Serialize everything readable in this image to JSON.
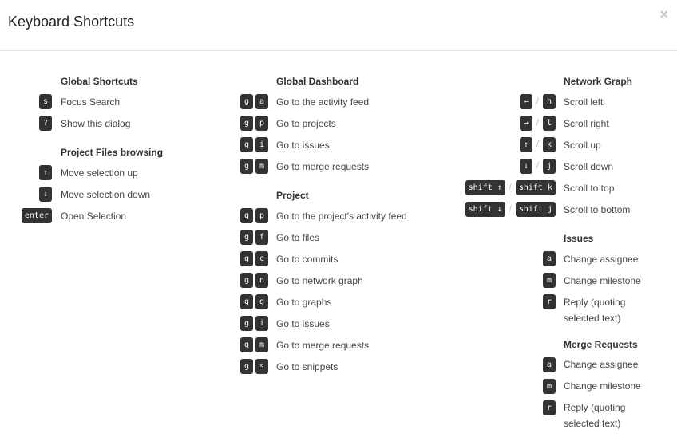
{
  "title": "Keyboard Shortcuts",
  "close": "×",
  "columns": [
    {
      "sections": [
        {
          "title": "Global Shortcuts",
          "items": [
            {
              "keys": [
                [
                  "s"
                ]
              ],
              "desc": "Focus Search"
            },
            {
              "keys": [
                [
                  "?"
                ]
              ],
              "desc": "Show this dialog"
            }
          ]
        },
        {
          "title": "Project Files browsing",
          "items": [
            {
              "keys": [
                [
                  "↑"
                ]
              ],
              "desc": "Move selection up"
            },
            {
              "keys": [
                [
                  "↓"
                ]
              ],
              "desc": "Move selection down"
            },
            {
              "keys": [
                [
                  "enter"
                ]
              ],
              "desc": "Open Selection"
            }
          ]
        }
      ]
    },
    {
      "sections": [
        {
          "title": "Global Dashboard",
          "items": [
            {
              "keys": [
                [
                  "g",
                  "a"
                ]
              ],
              "desc": "Go to the activity feed"
            },
            {
              "keys": [
                [
                  "g",
                  "p"
                ]
              ],
              "desc": "Go to projects"
            },
            {
              "keys": [
                [
                  "g",
                  "i"
                ]
              ],
              "desc": "Go to issues"
            },
            {
              "keys": [
                [
                  "g",
                  "m"
                ]
              ],
              "desc": "Go to merge requests"
            }
          ]
        },
        {
          "title": "Project",
          "items": [
            {
              "keys": [
                [
                  "g",
                  "p"
                ]
              ],
              "desc": "Go to the project's activity feed"
            },
            {
              "keys": [
                [
                  "g",
                  "f"
                ]
              ],
              "desc": "Go to files"
            },
            {
              "keys": [
                [
                  "g",
                  "c"
                ]
              ],
              "desc": "Go to commits"
            },
            {
              "keys": [
                [
                  "g",
                  "n"
                ]
              ],
              "desc": "Go to network graph"
            },
            {
              "keys": [
                [
                  "g",
                  "g"
                ]
              ],
              "desc": "Go to graphs"
            },
            {
              "keys": [
                [
                  "g",
                  "i"
                ]
              ],
              "desc": "Go to issues"
            },
            {
              "keys": [
                [
                  "g",
                  "m"
                ]
              ],
              "desc": "Go to merge requests"
            },
            {
              "keys": [
                [
                  "g",
                  "s"
                ]
              ],
              "desc": "Go to snippets"
            }
          ]
        }
      ]
    },
    {
      "sections": [
        {
          "title": "Network Graph",
          "items": [
            {
              "keys": [
                [
                  "←"
                ],
                [
                  "h"
                ]
              ],
              "desc": "Scroll left"
            },
            {
              "keys": [
                [
                  "→"
                ],
                [
                  "l"
                ]
              ],
              "desc": "Scroll right"
            },
            {
              "keys": [
                [
                  "↑"
                ],
                [
                  "k"
                ]
              ],
              "desc": "Scroll up"
            },
            {
              "keys": [
                [
                  "↓"
                ],
                [
                  "j"
                ]
              ],
              "desc": "Scroll down"
            },
            {
              "keys": [
                [
                  "shift ↑"
                ],
                [
                  "shift k"
                ]
              ],
              "desc": "Scroll to top"
            },
            {
              "keys": [
                [
                  "shift ↓"
                ],
                [
                  "shift j"
                ]
              ],
              "desc": "Scroll to bottom"
            }
          ]
        },
        {
          "title": "Issues",
          "items": [
            {
              "keys": [
                [
                  "a"
                ]
              ],
              "desc": "Change assignee"
            },
            {
              "keys": [
                [
                  "m"
                ]
              ],
              "desc": "Change milestone"
            },
            {
              "keys": [
                [
                  "r"
                ]
              ],
              "desc": "Reply (quoting selected text)"
            }
          ]
        },
        {
          "title": "Merge Requests",
          "items": [
            {
              "keys": [
                [
                  "a"
                ]
              ],
              "desc": "Change assignee"
            },
            {
              "keys": [
                [
                  "m"
                ]
              ],
              "desc": "Change milestone"
            },
            {
              "keys": [
                [
                  "r"
                ]
              ],
              "desc": "Reply (quoting selected text)"
            }
          ]
        }
      ]
    }
  ]
}
